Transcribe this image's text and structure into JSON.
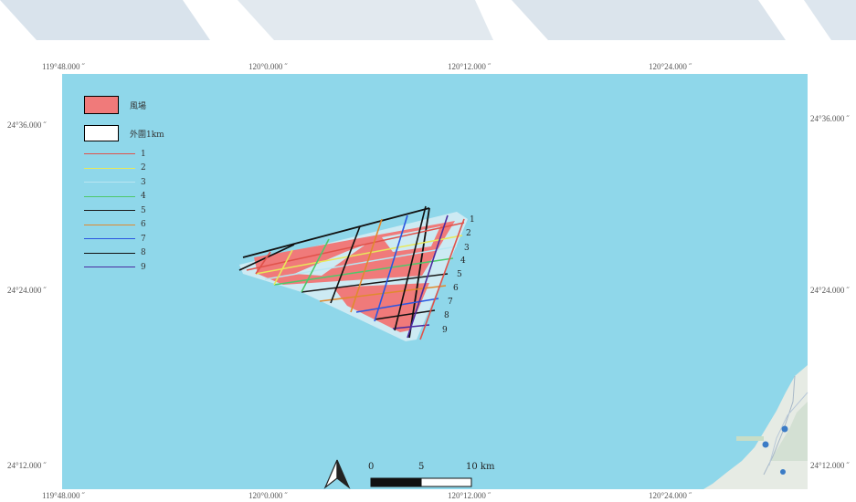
{
  "coords": {
    "top": [
      "119°48.000 ˝",
      "120°0.000 ˝",
      "120°12.000 ˝",
      "120°24.000 ˝"
    ],
    "bottom": [
      "119°48.000 ˝",
      "120°0.000 ˝",
      "120°12.000 ˝",
      "120°24.000 ˝"
    ],
    "left": [
      "24°36.000 ˝",
      "24°24.000 ˝",
      "24°12.000 ˝"
    ],
    "right": [
      "24°36.000 ˝",
      "24°24.000 ˝",
      "24°12.000 ˝"
    ]
  },
  "legend": {
    "wind_farm_label": "風場",
    "wind_farm_color": "#f07a7a",
    "buffer_label": "外圍1km",
    "buffer_color": "#ffffff",
    "lines": [
      {
        "label": "1",
        "color": "#e0524a"
      },
      {
        "label": "2",
        "color": "#e8e85a"
      },
      {
        "label": "3",
        "color": "#b8e6f2"
      },
      {
        "label": "4",
        "color": "#4ec86a"
      },
      {
        "label": "5",
        "color": "#1a1a1a"
      },
      {
        "label": "6",
        "color": "#e08a2e"
      },
      {
        "label": "7",
        "color": "#2a56e0"
      },
      {
        "label": "8",
        "color": "#111111"
      },
      {
        "label": "9",
        "color": "#4a2aa0"
      }
    ]
  },
  "line_labels": [
    "1",
    "2",
    "3",
    "4",
    "5",
    "6",
    "7",
    "8",
    "9"
  ],
  "scale_bar": {
    "labels": [
      "0",
      "5",
      "10 km"
    ]
  },
  "colors": {
    "sea": "#8fd7ea",
    "buffer": "#cdeaf3",
    "wind_farm": "#f07a7a"
  }
}
